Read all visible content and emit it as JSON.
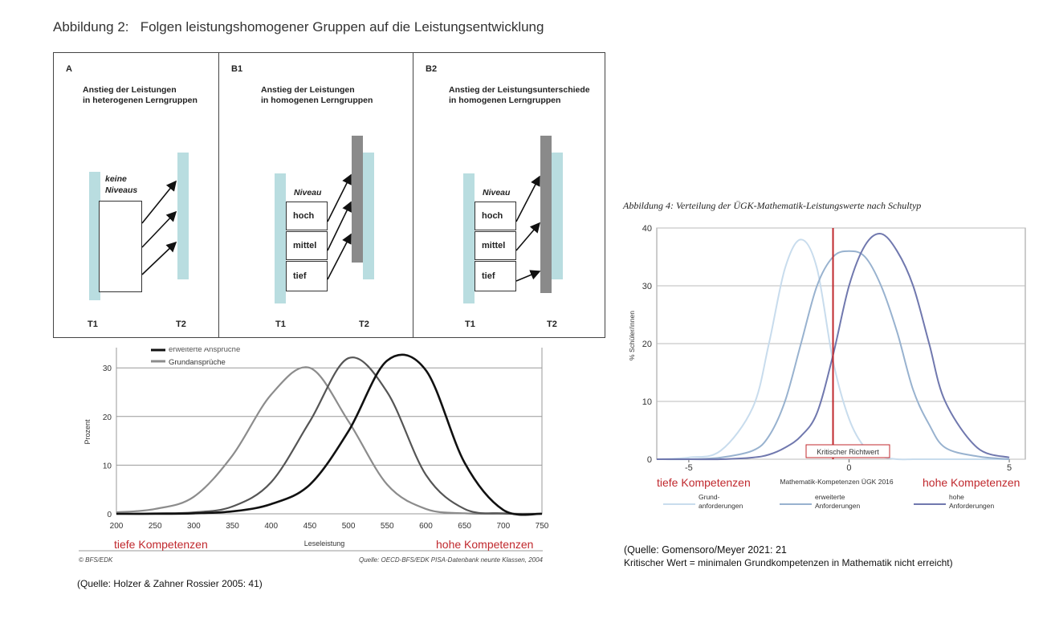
{
  "main_title": "Abbildung 2:   Folgen leistungshomogener Gruppen auf die Leistungsentwicklung",
  "diagram": {
    "panels": [
      {
        "label": "A",
        "title_line1": "Anstieg der Leistungen",
        "title_line2": "in heterogenen Lerngruppen",
        "box_label_1": "keine",
        "box_label_2": "Niveaus",
        "t1": "T1",
        "t2": "T2"
      },
      {
        "label": "B1",
        "title_line1": "Anstieg der Leistungen",
        "title_line2": "in homogenen Lerngruppen",
        "niveau": "Niveau",
        "levels": [
          "hoch",
          "mittel",
          "tief"
        ],
        "t1": "T1",
        "t2": "T2"
      },
      {
        "label": "B2",
        "title_line1": "Anstieg der Leistungsunterschiede",
        "title_line2": "in homogenen Lerngruppen",
        "niveau": "Niveau",
        "levels": [
          "hoch",
          "mittel",
          "tief"
        ],
        "t1": "T1",
        "t2": "T2"
      }
    ],
    "colors": {
      "light_bar": "#b9dde0",
      "dark_bar": "#8a8a8a"
    }
  },
  "chart_data": [
    {
      "type": "line",
      "title": "",
      "xlabel": "Leseleistung",
      "ylabel": "Prozent",
      "xlim": [
        200,
        750
      ],
      "ylim": [
        0,
        30
      ],
      "x_ticks": [
        200,
        250,
        300,
        350,
        400,
        450,
        500,
        550,
        600,
        650,
        700,
        750
      ],
      "y_ticks": [
        0,
        10,
        20,
        30
      ],
      "grid": "horizontal",
      "legend_position": "top-left",
      "x": [
        200,
        250,
        300,
        350,
        400,
        450,
        500,
        550,
        600,
        650,
        700,
        750
      ],
      "series": [
        {
          "name": "Grundansprüche",
          "color": "#8c8c8c",
          "values": [
            0.3,
            1.0,
            3.5,
            12.0,
            24.5,
            30.0,
            19.0,
            6.0,
            1.0,
            0.1,
            0,
            0
          ]
        },
        {
          "name": "",
          "color": "#555555",
          "values": [
            0,
            0.1,
            0.3,
            1.5,
            6.5,
            19.0,
            32.0,
            25.0,
            8.0,
            1.0,
            0.1,
            0
          ]
        },
        {
          "name": "erweiterte Ansprüche",
          "color": "#111111",
          "values": [
            0,
            0,
            0.1,
            0.5,
            2.0,
            6.0,
            17.0,
            31.5,
            29.5,
            10.5,
            0.8,
            0
          ]
        }
      ],
      "footer_left": "© BFS/EDK",
      "footer_right": "Quelle: OECD-BFS/EDK PISA-Datenbank neunte Klassen, 2004"
    },
    {
      "type": "line",
      "title": "Abbildung 4:  Verteilung der ÜGK-Mathematik-Leistungswerte nach Schultyp",
      "xlabel": "Mathematik-Kompetenzen ÜGK 2016",
      "ylabel": "% Schüler/innen",
      "xlim": [
        -6,
        5.5
      ],
      "ylim": [
        0,
        40
      ],
      "x_ticks": [
        -5,
        0,
        5
      ],
      "y_ticks": [
        0,
        10,
        20,
        30,
        40
      ],
      "grid": "horizontal",
      "legend_position": "bottom",
      "x": [
        -6,
        -5,
        -4,
        -3,
        -2.5,
        -2,
        -1.5,
        -1,
        -0.5,
        0,
        0.5,
        1,
        1.5,
        2,
        2.5,
        3,
        4,
        5
      ],
      "series": [
        {
          "name": "Grund- anforderungen",
          "color": "#c8dced",
          "values": [
            0,
            0.3,
            1.5,
            9.0,
            20.0,
            33.0,
            38.0,
            33.0,
            17.0,
            7.0,
            2.0,
            0.5,
            0,
            0,
            0,
            0,
            0,
            0
          ]
        },
        {
          "name": "erweiterte Anforderungen",
          "color": "#98b2cf",
          "values": [
            0,
            0,
            0.3,
            1.5,
            4.0,
            10.0,
            20.0,
            30.0,
            35.0,
            36.0,
            35.0,
            30.0,
            22.0,
            12.0,
            6.0,
            2.0,
            0.5,
            0
          ]
        },
        {
          "name": "hohe Anforderungen",
          "color": "#7078ae",
          "values": [
            0,
            0,
            0,
            0.3,
            0.8,
            2.0,
            4.0,
            8.0,
            18.0,
            30.0,
            37.0,
            39.0,
            36.0,
            30.0,
            20.0,
            10.0,
            2.0,
            0.3
          ]
        }
      ],
      "critical_line": {
        "x": -0.5,
        "label": "Kritischer Richtwert",
        "color": "#c0282d"
      }
    }
  ],
  "annotations": {
    "tief_left": "tiefe Kompetenzen",
    "hoch_left": "hohe Kompetenzen",
    "tief_right": "tiefe Kompetenzen",
    "hoch_right": "hohe Kompetenzen",
    "source_left": "(Quelle: Holzer & Zahner Rossier 2005: 41)",
    "source_right_1": "(Quelle: Gomensoro/Meyer 2021: 21",
    "source_right_2": "Kritischer Wert = minimalen Grundkompetenzen in Mathematik nicht erreicht)"
  }
}
